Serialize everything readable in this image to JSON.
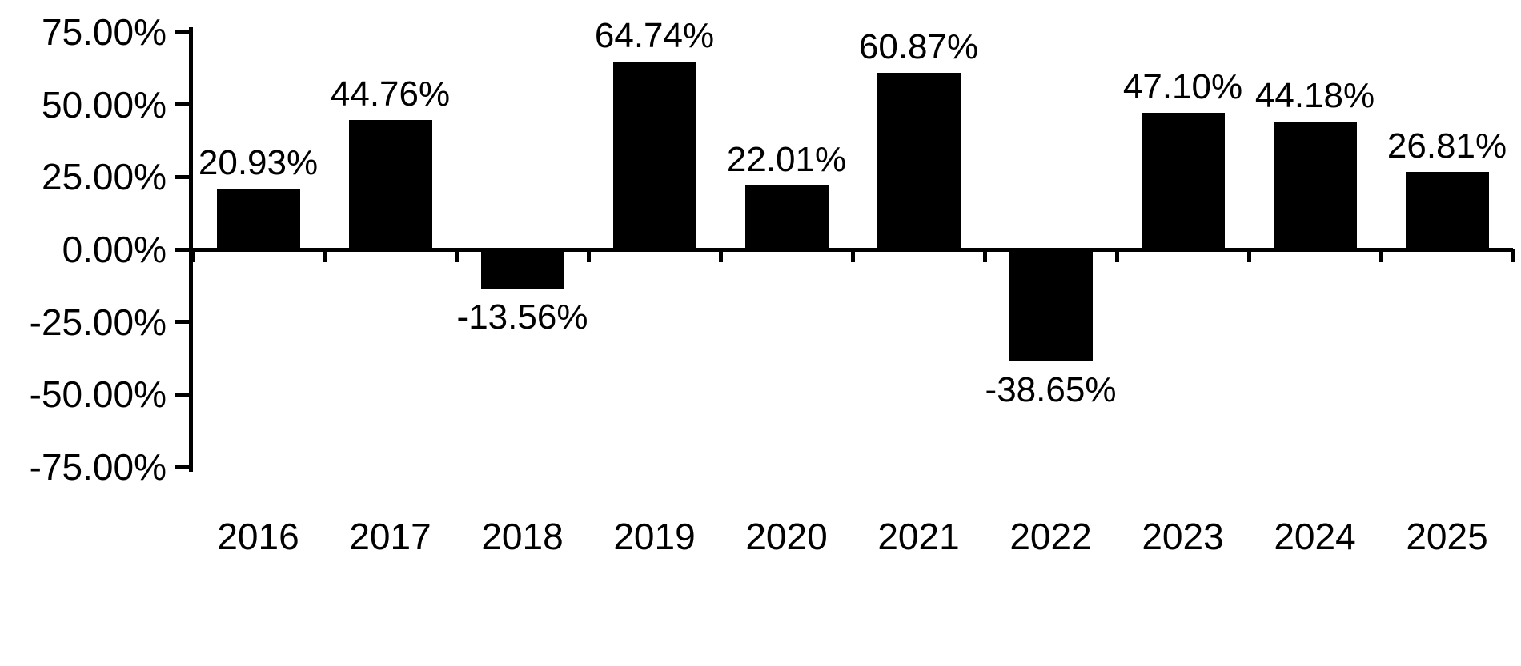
{
  "chart_data": {
    "type": "bar",
    "title": "",
    "xlabel": "",
    "ylabel": "",
    "categories": [
      "2016",
      "2017",
      "2018",
      "2019",
      "2020",
      "2021",
      "2022",
      "2023",
      "2024",
      "2025"
    ],
    "values": [
      20.93,
      44.76,
      -13.56,
      64.74,
      22.01,
      60.87,
      -38.65,
      47.1,
      44.18,
      26.81
    ],
    "data_labels": [
      "20.93%",
      "44.76%",
      "-13.56%",
      "64.74%",
      "22.01%",
      "60.87%",
      "-38.65%",
      "47.10%",
      "44.18%",
      "26.81%"
    ],
    "y_ticks": [
      "75.00%",
      "50.00%",
      "25.00%",
      "0.00%",
      "-25.00%",
      "-50.00%",
      "-75.00%"
    ],
    "y_tick_values": [
      75,
      50,
      25,
      0,
      -25,
      -50,
      -75
    ],
    "ylim": [
      -75,
      75
    ],
    "grid": false,
    "legend": false,
    "bar_color": "#000000",
    "axis_color": "#000000",
    "background_color": "#ffffff",
    "text_color": "#000000"
  }
}
